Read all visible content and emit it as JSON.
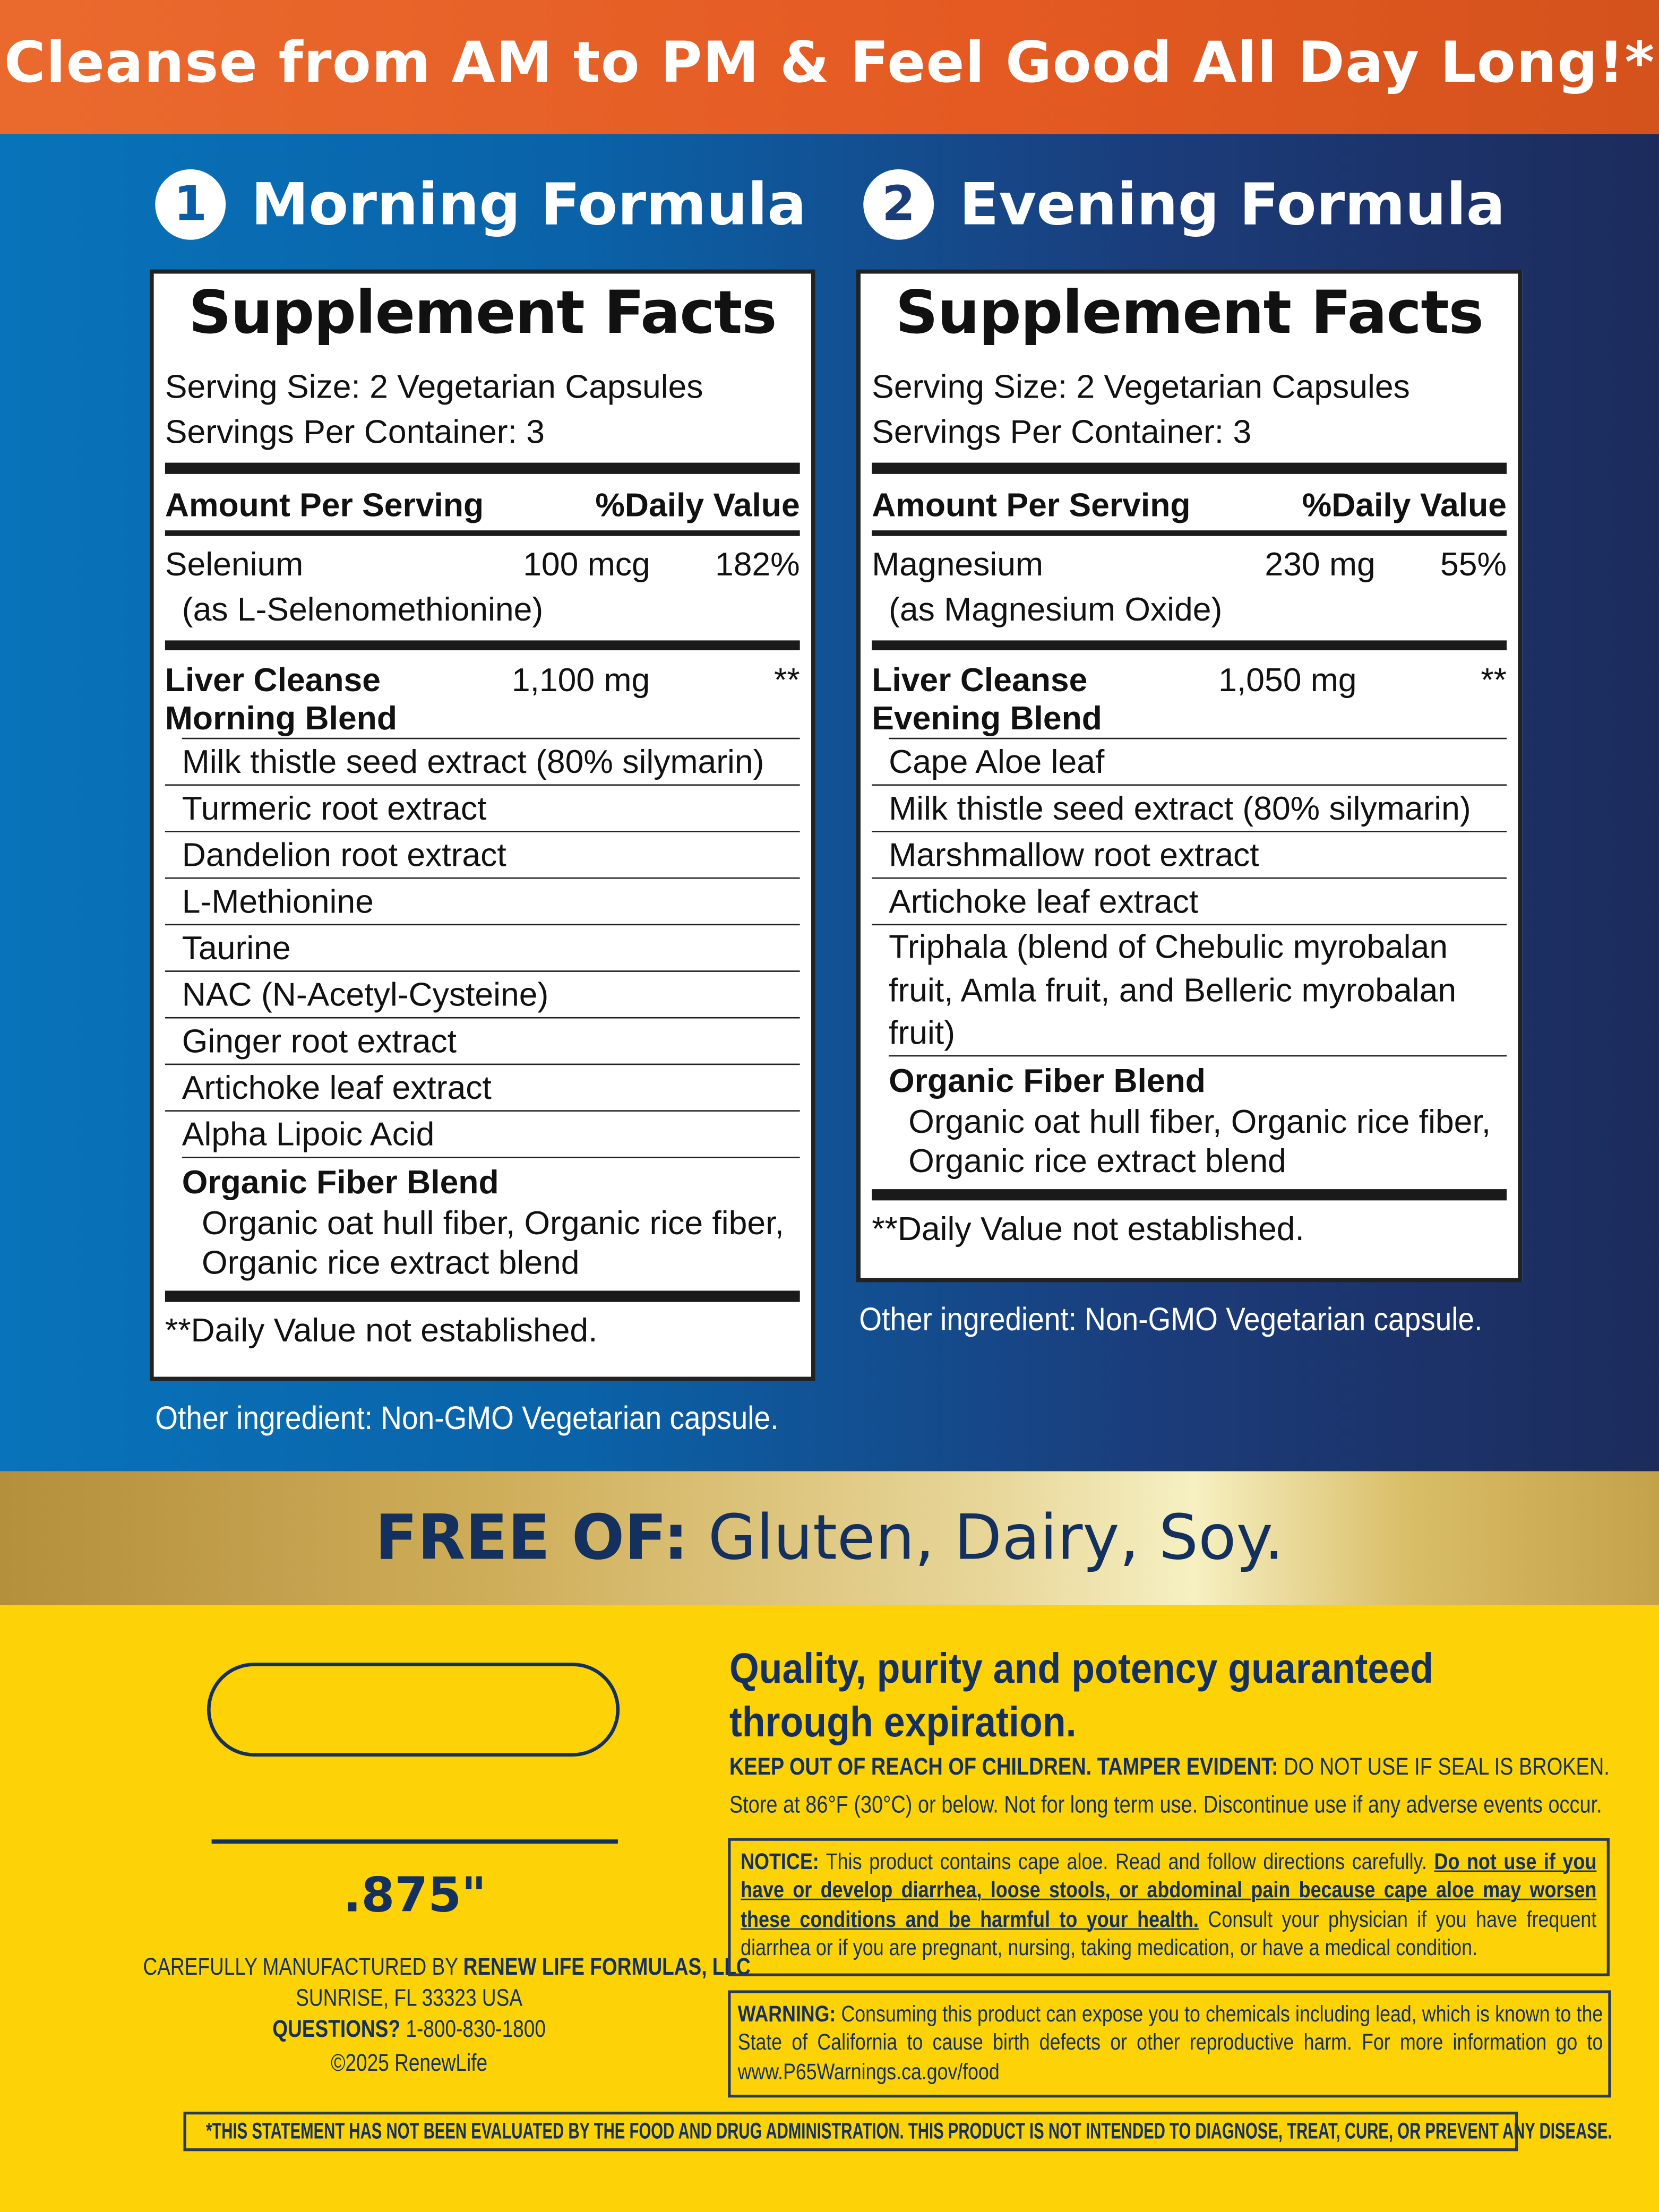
{
  "header": {
    "title": "Cleanse from AM to PM & Feel Good All Day Long!*"
  },
  "morning": {
    "number": "1",
    "title": "Morning Formula",
    "facts": {
      "title": "Supplement Facts",
      "serving_size": "Serving Size: 2 Vegetarian Capsules",
      "servings_per": "Servings Per Container: 3",
      "amount_header": "Amount Per Serving",
      "dv_header": "%Daily Value",
      "nutrient": {
        "name": "Selenium",
        "sub": "(as L-Selenomethionine)",
        "amount": "100 mcg",
        "dv": "182%"
      },
      "blend": {
        "name1": "Liver Cleanse",
        "name2": "Morning Blend",
        "amount": "1,100 mg",
        "dv": "**",
        "items": [
          "Milk thistle seed extract (80% silymarin)",
          "Turmeric root extract",
          "Dandelion root extract",
          "L-Methionine",
          "Taurine",
          "NAC (N-Acetyl-Cysteine)",
          "Ginger root extract",
          "Artichoke leaf extract",
          "Alpha Lipoic Acid"
        ]
      },
      "fiber": {
        "name": "Organic Fiber Blend",
        "desc1": "Organic oat hull fiber, Organic rice fiber,",
        "desc2": "Organic rice extract blend"
      },
      "footnote": "**Daily Value not established."
    },
    "other": "Other ingredient: Non-GMO Vegetarian capsule."
  },
  "evening": {
    "number": "2",
    "title": "Evening Formula",
    "facts": {
      "title": "Supplement Facts",
      "serving_size": "Serving Size: 2 Vegetarian Capsules",
      "servings_per": "Servings Per Container: 3",
      "amount_header": "Amount Per Serving",
      "dv_header": "%Daily Value",
      "nutrient": {
        "name": "Magnesium",
        "sub": "(as Magnesium Oxide)",
        "amount": "230 mg",
        "dv": "55%"
      },
      "blend": {
        "name1": "Liver Cleanse",
        "name2": "Evening Blend",
        "amount": "1,050 mg",
        "dv": "**",
        "items": [
          "Cape Aloe leaf",
          "Milk thistle seed extract (80% silymarin)",
          "Marshmallow root extract",
          "Artichoke leaf extract",
          "Triphala (blend of Chebulic myrobalan fruit, Amla fruit, and Belleric myrobalan fruit)"
        ]
      },
      "fiber": {
        "name": "Organic Fiber Blend",
        "desc1": "Organic oat hull fiber, Organic rice fiber,",
        "desc2": "Organic rice extract blend"
      },
      "footnote": "**Daily Value not established."
    },
    "other": "Other ingredient: Non-GMO Vegetarian capsule."
  },
  "free_of": {
    "label": "FREE OF:",
    "items": "Gluten, Dairy, Soy."
  },
  "capsule": {
    "size": ".875\""
  },
  "manufacturer": {
    "prefix": "CAREFULLY MANUFACTURED BY",
    "name": "RENEW LIFE FORMULAS, LLC",
    "address": "SUNRISE, FL 33323 USA",
    "questions_label": "QUESTIONS?",
    "phone": "1-800-830-1800",
    "copyright": "©2025 RenewLife"
  },
  "quality": {
    "line1": "Quality, purity and potency guaranteed",
    "line2": "through expiration.",
    "keep_out": "KEEP OUT OF REACH OF CHILDREN.",
    "tamper_label": "TAMPER EVIDENT:",
    "tamper_text": "DO NOT USE IF SEAL IS BROKEN.",
    "store": "Store at 86°F (30°C) or below. Not for long term use. Discontinue use if any adverse events occur."
  },
  "notice": {
    "label": "NOTICE:",
    "text1": "This product contains cape aloe. Read and follow directions carefully.",
    "bold": "Do not use if you have or develop diarrhea, loose stools, or abdominal pain because cape aloe may worsen these conditions and be harmful to your health.",
    "text2": "Consult your physician if you have frequent diarrhea or if you are pregnant, nursing, taking medication, or have a medical condition."
  },
  "warning": {
    "label": "WARNING:",
    "text": "Consuming this product can expose you to chemicals including lead, which is known to the State of California to cause birth defects or other reproductive harm. For more information go to www.P65Warnings.ca.gov/food"
  },
  "disclaimer": "*THIS STATEMENT HAS NOT BEEN EVALUATED BY THE FOOD AND DRUG ADMINISTRATION. THIS PRODUCT IS NOT INTENDED TO DIAGNOSE, TREAT, CURE, OR PREVENT ANY DISEASE.",
  "colors": {
    "orange": "#e8632a",
    "blue": "#0873ba",
    "navy": "#13305e",
    "yellow": "#fdd206",
    "gold": "#cfae5a"
  }
}
